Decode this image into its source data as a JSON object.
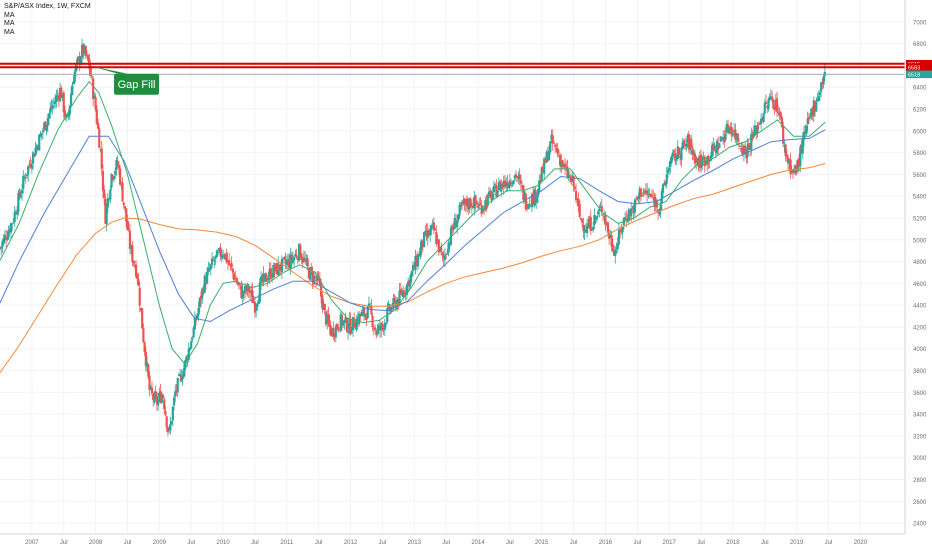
{
  "header": {
    "symbol_line": "S&P/ASX Index, 1W, FXCM",
    "ma_labels": [
      "MA",
      "MA",
      "MA"
    ]
  },
  "annotation": {
    "text": "Gap Fill",
    "color": "#1e8e3e"
  },
  "colors": {
    "up": "#26a69a",
    "down": "#ef5350",
    "ma_fast": "#3cae6a",
    "ma_mid": "#4f7fd8",
    "ma_slow": "#f5883a",
    "resistance": "#d50000",
    "gap_line": "#9e9e9e"
  },
  "chart_data": {
    "type": "candlestick",
    "title": "S&P/ASX Index, 1W, FXCM",
    "ylim": [
      2300,
      7200
    ],
    "y_ticks": [
      2400,
      2600,
      2800,
      3000,
      3200,
      3400,
      3600,
      3800,
      4000,
      4200,
      4400,
      4600,
      4800,
      5000,
      5200,
      5400,
      5600,
      5800,
      6000,
      6200,
      6400,
      6600,
      6800,
      7000
    ],
    "x_ticks": [
      {
        "t": 2007.0,
        "label": "2007"
      },
      {
        "t": 2007.5,
        "label": "Jul"
      },
      {
        "t": 2008.0,
        "label": "2008"
      },
      {
        "t": 2008.5,
        "label": "Jul"
      },
      {
        "t": 2009.0,
        "label": "2009"
      },
      {
        "t": 2009.5,
        "label": "Jul"
      },
      {
        "t": 2010.0,
        "label": "2010"
      },
      {
        "t": 2010.5,
        "label": "Jul"
      },
      {
        "t": 2011.0,
        "label": "2011"
      },
      {
        "t": 2011.5,
        "label": "Jul"
      },
      {
        "t": 2012.0,
        "label": "2012"
      },
      {
        "t": 2012.5,
        "label": "Jul"
      },
      {
        "t": 2013.0,
        "label": "2013"
      },
      {
        "t": 2013.5,
        "label": "Jul"
      },
      {
        "t": 2014.0,
        "label": "2014"
      },
      {
        "t": 2014.5,
        "label": "Jul"
      },
      {
        "t": 2015.0,
        "label": "2015"
      },
      {
        "t": 2015.5,
        "label": "Jul"
      },
      {
        "t": 2016.0,
        "label": "2016"
      },
      {
        "t": 2016.5,
        "label": "Jul"
      },
      {
        "t": 2017.0,
        "label": "2017"
      },
      {
        "t": 2017.5,
        "label": "Jul"
      },
      {
        "t": 2018.0,
        "label": "2018"
      },
      {
        "t": 2018.5,
        "label": "Jul"
      },
      {
        "t": 2019.0,
        "label": "2019"
      },
      {
        "t": 2019.5,
        "label": "Jul"
      },
      {
        "t": 2020.0,
        "label": "2020"
      }
    ],
    "xlim": [
      2006.5,
      2020.7
    ],
    "price_path": [
      [
        2006.5,
        4920
      ],
      [
        2006.7,
        5180
      ],
      [
        2006.9,
        5600
      ],
      [
        2007.1,
        5900
      ],
      [
        2007.3,
        6200
      ],
      [
        2007.45,
        6380
      ],
      [
        2007.55,
        6050
      ],
      [
        2007.65,
        6500
      ],
      [
        2007.8,
        6750
      ],
      [
        2007.9,
        6600
      ],
      [
        2008.0,
        6200
      ],
      [
        2008.08,
        5800
      ],
      [
        2008.15,
        5200
      ],
      [
        2008.25,
        5600
      ],
      [
        2008.35,
        5700
      ],
      [
        2008.45,
        5300
      ],
      [
        2008.55,
        4900
      ],
      [
        2008.65,
        4700
      ],
      [
        2008.75,
        4100
      ],
      [
        2008.85,
        3600
      ],
      [
        2008.95,
        3500
      ],
      [
        2009.05,
        3600
      ],
      [
        2009.15,
        3200
      ],
      [
        2009.25,
        3600
      ],
      [
        2009.4,
        3850
      ],
      [
        2009.55,
        4200
      ],
      [
        2009.7,
        4600
      ],
      [
        2009.85,
        4800
      ],
      [
        2010.0,
        4900
      ],
      [
        2010.15,
        4700
      ],
      [
        2010.3,
        4500
      ],
      [
        2010.4,
        4550
      ],
      [
        2010.5,
        4400
      ],
      [
        2010.6,
        4600
      ],
      [
        2010.75,
        4700
      ],
      [
        2010.9,
        4750
      ],
      [
        2011.05,
        4800
      ],
      [
        2011.2,
        4900
      ],
      [
        2011.35,
        4700
      ],
      [
        2011.5,
        4600
      ],
      [
        2011.6,
        4300
      ],
      [
        2011.7,
        4150
      ],
      [
        2011.85,
        4250
      ],
      [
        2012.0,
        4200
      ],
      [
        2012.15,
        4300
      ],
      [
        2012.3,
        4350
      ],
      [
        2012.4,
        4150
      ],
      [
        2012.5,
        4200
      ],
      [
        2012.6,
        4350
      ],
      [
        2012.75,
        4450
      ],
      [
        2012.9,
        4600
      ],
      [
        2013.0,
        4750
      ],
      [
        2013.15,
        5000
      ],
      [
        2013.3,
        5100
      ],
      [
        2013.45,
        4800
      ],
      [
        2013.6,
        5100
      ],
      [
        2013.75,
        5300
      ],
      [
        2013.9,
        5350
      ],
      [
        2014.05,
        5300
      ],
      [
        2014.2,
        5400
      ],
      [
        2014.35,
        5500
      ],
      [
        2014.5,
        5550
      ],
      [
        2014.6,
        5600
      ],
      [
        2014.75,
        5350
      ],
      [
        2014.9,
        5400
      ],
      [
        2015.0,
        5600
      ],
      [
        2015.15,
        5900
      ],
      [
        2015.25,
        5800
      ],
      [
        2015.35,
        5650
      ],
      [
        2015.5,
        5500
      ],
      [
        2015.6,
        5200
      ],
      [
        2015.7,
        5100
      ],
      [
        2015.85,
        5200
      ],
      [
        2015.95,
        5300
      ],
      [
        2016.05,
        5050
      ],
      [
        2016.15,
        4900
      ],
      [
        2016.3,
        5200
      ],
      [
        2016.45,
        5300
      ],
      [
        2016.55,
        5450
      ],
      [
        2016.7,
        5400
      ],
      [
        2016.85,
        5300
      ],
      [
        2017.0,
        5700
      ],
      [
        2017.15,
        5800
      ],
      [
        2017.3,
        5900
      ],
      [
        2017.45,
        5700
      ],
      [
        2017.6,
        5750
      ],
      [
        2017.8,
        5900
      ],
      [
        2017.95,
        6050
      ],
      [
        2018.05,
        5950
      ],
      [
        2018.2,
        5800
      ],
      [
        2018.35,
        6000
      ],
      [
        2018.5,
        6200
      ],
      [
        2018.6,
        6300
      ],
      [
        2018.72,
        6200
      ],
      [
        2018.82,
        5800
      ],
      [
        2018.95,
        5600
      ],
      [
        2019.0,
        5650
      ],
      [
        2019.1,
        5900
      ],
      [
        2019.25,
        6200
      ],
      [
        2019.35,
        6350
      ],
      [
        2019.45,
        6550
      ]
    ],
    "ma_fast": [
      [
        2006.5,
        4810
      ],
      [
        2006.8,
        5150
      ],
      [
        2007.1,
        5600
      ],
      [
        2007.4,
        6000
      ],
      [
        2007.7,
        6300
      ],
      [
        2007.9,
        6450
      ],
      [
        2008.05,
        6350
      ],
      [
        2008.25,
        6050
      ],
      [
        2008.5,
        5600
      ],
      [
        2008.75,
        5000
      ],
      [
        2009.0,
        4400
      ],
      [
        2009.2,
        4000
      ],
      [
        2009.4,
        3860
      ],
      [
        2009.6,
        4050
      ],
      [
        2009.8,
        4400
      ],
      [
        2010.0,
        4600
      ],
      [
        2010.2,
        4620
      ],
      [
        2010.45,
        4560
      ],
      [
        2010.7,
        4600
      ],
      [
        2010.95,
        4700
      ],
      [
        2011.2,
        4770
      ],
      [
        2011.45,
        4700
      ],
      [
        2011.7,
        4450
      ],
      [
        2011.95,
        4280
      ],
      [
        2012.2,
        4240
      ],
      [
        2012.45,
        4260
      ],
      [
        2012.7,
        4360
      ],
      [
        2012.95,
        4560
      ],
      [
        2013.2,
        4800
      ],
      [
        2013.45,
        4950
      ],
      [
        2013.7,
        5100
      ],
      [
        2013.95,
        5250
      ],
      [
        2014.2,
        5350
      ],
      [
        2014.45,
        5450
      ],
      [
        2014.7,
        5450
      ],
      [
        2014.95,
        5500
      ],
      [
        2015.2,
        5650
      ],
      [
        2015.45,
        5650
      ],
      [
        2015.7,
        5450
      ],
      [
        2015.95,
        5250
      ],
      [
        2016.2,
        5150
      ],
      [
        2016.45,
        5200
      ],
      [
        2016.7,
        5300
      ],
      [
        2016.95,
        5350
      ],
      [
        2017.2,
        5550
      ],
      [
        2017.45,
        5700
      ],
      [
        2017.7,
        5750
      ],
      [
        2017.95,
        5850
      ],
      [
        2018.2,
        5900
      ],
      [
        2018.45,
        6000
      ],
      [
        2018.7,
        6100
      ],
      [
        2018.95,
        5950
      ],
      [
        2019.2,
        5950
      ],
      [
        2019.45,
        6080
      ]
    ],
    "ma_mid": [
      [
        2006.5,
        4420
      ],
      [
        2006.8,
        4800
      ],
      [
        2007.2,
        5250
      ],
      [
        2007.6,
        5650
      ],
      [
        2007.9,
        5950
      ],
      [
        2008.2,
        5950
      ],
      [
        2008.45,
        5720
      ],
      [
        2008.7,
        5350
      ],
      [
        2009.0,
        4900
      ],
      [
        2009.3,
        4500
      ],
      [
        2009.55,
        4280
      ],
      [
        2009.8,
        4250
      ],
      [
        2010.1,
        4350
      ],
      [
        2010.45,
        4450
      ],
      [
        2010.8,
        4550
      ],
      [
        2011.1,
        4620
      ],
      [
        2011.4,
        4620
      ],
      [
        2011.7,
        4520
      ],
      [
        2012.0,
        4420
      ],
      [
        2012.3,
        4360
      ],
      [
        2012.6,
        4350
      ],
      [
        2012.9,
        4440
      ],
      [
        2013.2,
        4620
      ],
      [
        2013.5,
        4780
      ],
      [
        2013.8,
        4950
      ],
      [
        2014.1,
        5100
      ],
      [
        2014.4,
        5250
      ],
      [
        2014.7,
        5350
      ],
      [
        2015.0,
        5450
      ],
      [
        2015.3,
        5580
      ],
      [
        2015.6,
        5560
      ],
      [
        2015.9,
        5450
      ],
      [
        2016.2,
        5350
      ],
      [
        2016.5,
        5330
      ],
      [
        2016.8,
        5350
      ],
      [
        2017.1,
        5450
      ],
      [
        2017.4,
        5550
      ],
      [
        2017.7,
        5640
      ],
      [
        2018.0,
        5740
      ],
      [
        2018.3,
        5820
      ],
      [
        2018.6,
        5900
      ],
      [
        2018.9,
        5920
      ],
      [
        2019.2,
        5930
      ],
      [
        2019.45,
        6010
      ]
    ],
    "ma_slow": [
      [
        2006.5,
        3780
      ],
      [
        2006.8,
        4030
      ],
      [
        2007.1,
        4310
      ],
      [
        2007.4,
        4590
      ],
      [
        2007.7,
        4860
      ],
      [
        2008.0,
        5060
      ],
      [
        2008.25,
        5160
      ],
      [
        2008.45,
        5200
      ],
      [
        2008.7,
        5190
      ],
      [
        2009.0,
        5140
      ],
      [
        2009.3,
        5100
      ],
      [
        2009.6,
        5090
      ],
      [
        2009.9,
        5070
      ],
      [
        2010.2,
        5030
      ],
      [
        2010.5,
        4950
      ],
      [
        2010.8,
        4830
      ],
      [
        2011.1,
        4700
      ],
      [
        2011.4,
        4580
      ],
      [
        2011.7,
        4480
      ],
      [
        2012.0,
        4420
      ],
      [
        2012.3,
        4390
      ],
      [
        2012.6,
        4390
      ],
      [
        2012.9,
        4430
      ],
      [
        2013.2,
        4520
      ],
      [
        2013.5,
        4600
      ],
      [
        2013.8,
        4660
      ],
      [
        2014.1,
        4700
      ],
      [
        2014.4,
        4740
      ],
      [
        2014.7,
        4790
      ],
      [
        2015.0,
        4850
      ],
      [
        2015.3,
        4900
      ],
      [
        2015.6,
        4940
      ],
      [
        2015.9,
        5000
      ],
      [
        2016.2,
        5100
      ],
      [
        2016.5,
        5180
      ],
      [
        2016.8,
        5250
      ],
      [
        2017.1,
        5320
      ],
      [
        2017.4,
        5380
      ],
      [
        2017.7,
        5420
      ],
      [
        2018.0,
        5480
      ],
      [
        2018.3,
        5540
      ],
      [
        2018.6,
        5600
      ],
      [
        2018.9,
        5640
      ],
      [
        2019.2,
        5660
      ],
      [
        2019.45,
        5700
      ]
    ],
    "levels": [
      {
        "name": "resistance-upper",
        "value": 6615,
        "label": "6615",
        "style": "red-thick"
      },
      {
        "name": "resistance-lower",
        "value": 6583,
        "label": "6583",
        "style": "red-thick"
      },
      {
        "name": "gap-line",
        "value": 6518,
        "label": "6518",
        "style": "thin-gray"
      }
    ],
    "annotations": [
      {
        "name": "gap-fill-callout",
        "text": "Gap Fill",
        "points_to": {
          "t": 2007.95,
          "y": 6590
        }
      }
    ]
  }
}
